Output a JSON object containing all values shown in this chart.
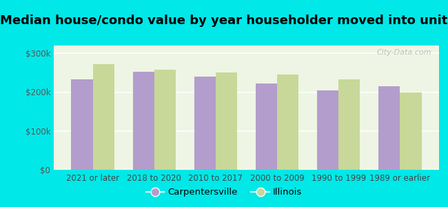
{
  "title": "Median house/condo value by year householder moved into unit",
  "categories": [
    "2021 or later",
    "2018 to 2020",
    "2010 to 2017",
    "2000 to 2009",
    "1990 to 1999",
    "1989 or earlier"
  ],
  "carpentersville": [
    232000,
    252000,
    240000,
    222000,
    205000,
    215000
  ],
  "illinois": [
    272000,
    258000,
    250000,
    245000,
    232000,
    200000
  ],
  "bar_color_carp": "#b39dcc",
  "bar_color_ill": "#c8d898",
  "background_outer": "#00e8e8",
  "background_inner": "#eef5e4",
  "ylim": [
    0,
    320000
  ],
  "yticks": [
    0,
    100000,
    200000,
    300000
  ],
  "ytick_labels": [
    "$0",
    "$100k",
    "$200k",
    "$300k"
  ],
  "legend_labels": [
    "Carpentersville",
    "Illinois"
  ],
  "watermark": "City-Data.com",
  "title_fontsize": 13,
  "tick_fontsize": 8.5,
  "bar_width": 0.35
}
